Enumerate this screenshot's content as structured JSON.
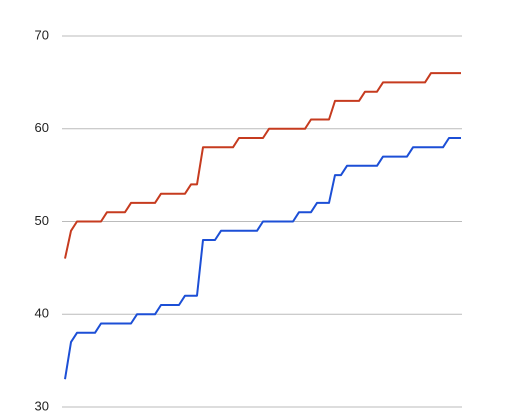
{
  "chart_data": {
    "type": "line",
    "categories": [
      null,
      null,
      null,
      null,
      null,
      null,
      null,
      null,
      null,
      null,
      null,
      null,
      null,
      null,
      null,
      null,
      null,
      null,
      null,
      null,
      null,
      null,
      null,
      null,
      null,
      null,
      null,
      null,
      null,
      null,
      null,
      null,
      null,
      null,
      null,
      null,
      null,
      null,
      null,
      null,
      null,
      null,
      null,
      null,
      null,
      null,
      null,
      null,
      null,
      null,
      null,
      null,
      null,
      null,
      null,
      null,
      null,
      null,
      null,
      null,
      null,
      null,
      null,
      null,
      null,
      null,
      null
    ],
    "series": [
      {
        "color": "#c63b1f",
        "values": [
          46,
          49,
          50,
          50,
          50,
          50,
          50,
          51,
          51,
          51,
          51,
          52,
          52,
          52,
          52,
          52,
          53,
          53,
          53,
          53,
          53,
          54,
          54,
          58,
          58,
          58,
          58,
          58,
          58,
          59,
          59,
          59,
          59,
          59,
          60,
          60,
          60,
          60,
          60,
          60,
          60,
          61,
          61,
          61,
          61,
          63,
          63,
          63,
          63,
          63,
          64,
          64,
          64,
          65,
          65,
          65,
          65,
          65,
          65,
          65,
          65,
          66,
          66,
          66,
          66,
          66,
          66
        ]
      },
      {
        "color": "#1c4fd6",
        "values": [
          33,
          37,
          38,
          38,
          38,
          38,
          39,
          39,
          39,
          39,
          39,
          39,
          40,
          40,
          40,
          40,
          41,
          41,
          41,
          41,
          42,
          42,
          42,
          48,
          48,
          48,
          49,
          49,
          49,
          49,
          49,
          49,
          49,
          50,
          50,
          50,
          50,
          50,
          50,
          51,
          51,
          51,
          52,
          52,
          52,
          55,
          55,
          56,
          56,
          56,
          56,
          56,
          56,
          57,
          57,
          57,
          57,
          57,
          58,
          58,
          58,
          58,
          58,
          58,
          59,
          59,
          59
        ]
      }
    ],
    "ylim": [
      30,
      70
    ],
    "yticks": [
      30,
      40,
      50,
      60,
      70
    ],
    "grid": true
  }
}
